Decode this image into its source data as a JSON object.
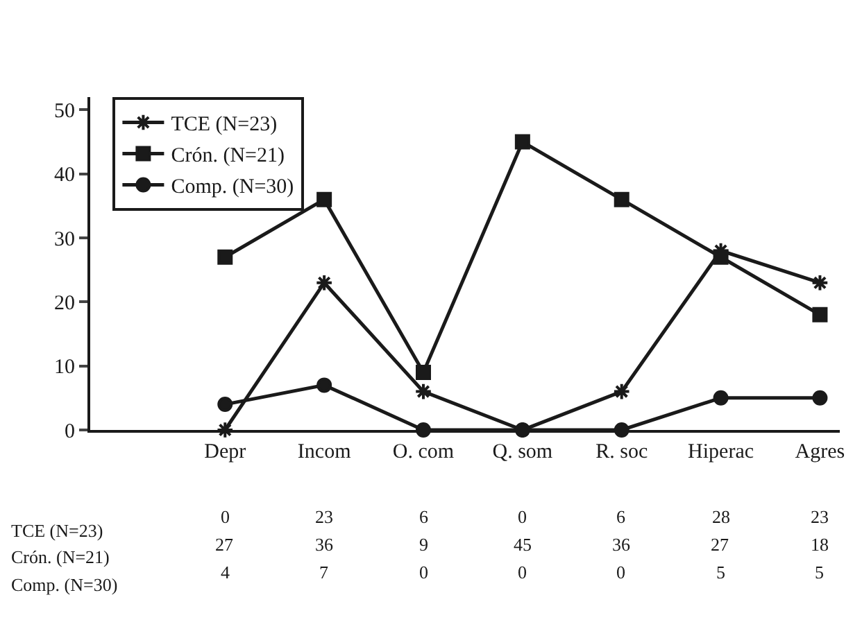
{
  "chart_data": {
    "type": "line",
    "categories": [
      "Depr",
      "Incom",
      "O. com",
      "Q. som",
      "R. soc",
      "Hiperac",
      "Agres"
    ],
    "series": [
      {
        "name": "TCE (N=23)",
        "color": "#1a1a1a",
        "marker": "cross",
        "values": [
          0,
          23,
          6,
          0,
          6,
          28,
          23
        ]
      },
      {
        "name": "Crón. (N=21)",
        "color": "#1a1a1a",
        "marker": "square",
        "values": [
          27,
          36,
          9,
          45,
          36,
          27,
          18
        ]
      },
      {
        "name": "Comp. (N=30)",
        "color": "#1a1a1a",
        "marker": "circle",
        "values": [
          4,
          7,
          0,
          0,
          0,
          5,
          5
        ]
      }
    ],
    "ylim": [
      0,
      52
    ],
    "yticks": [
      0,
      10,
      20,
      30,
      40,
      50
    ],
    "legend": "top left",
    "data_labels": true
  }
}
